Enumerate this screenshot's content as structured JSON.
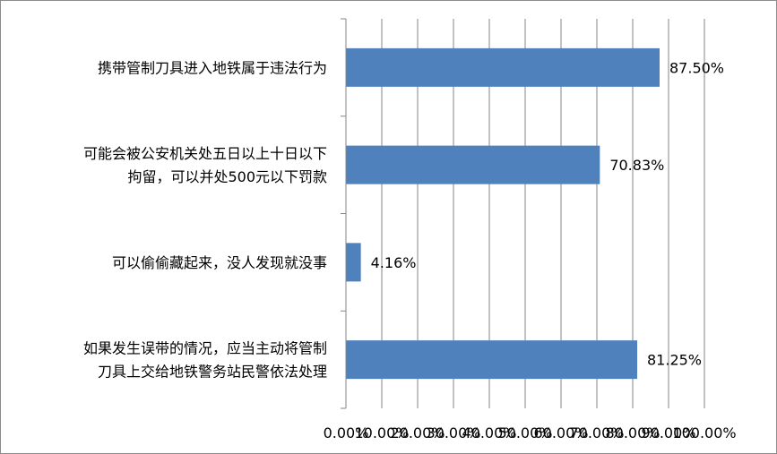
{
  "chart_data": {
    "type": "bar",
    "orientation": "horizontal",
    "categories": [
      [
        "携带管制刀具进入地铁属于违法行为"
      ],
      [
        "可能会被公安机关处五日以上十日以下",
        "拘留，可以并处500元以下罚款"
      ],
      [
        "可以偷偷藏起来，没人发现就没事"
      ],
      [
        "如果发生误带的情况，应当主动将管制",
        "刀具上交给地铁警务站民警依法处理"
      ]
    ],
    "values": [
      87.5,
      70.83,
      4.16,
      81.25
    ],
    "value_labels": [
      "87.50%",
      "70.83%",
      "4.16%",
      "81.25%"
    ],
    "x_ticks": [
      "0.00%",
      "10.00%",
      "20.00%",
      "30.00%",
      "40.00%",
      "50.00%",
      "60.00%",
      "70.00%",
      "80.00%",
      "90.00%",
      "100.00%"
    ],
    "xlim": [
      0,
      100
    ],
    "title": "",
    "xlabel": "",
    "ylabel": "",
    "grid": "vertical",
    "legend": "none",
    "colors": {
      "bar": "#4f81bd",
      "grid": "#868686",
      "axis": "#868686"
    }
  }
}
